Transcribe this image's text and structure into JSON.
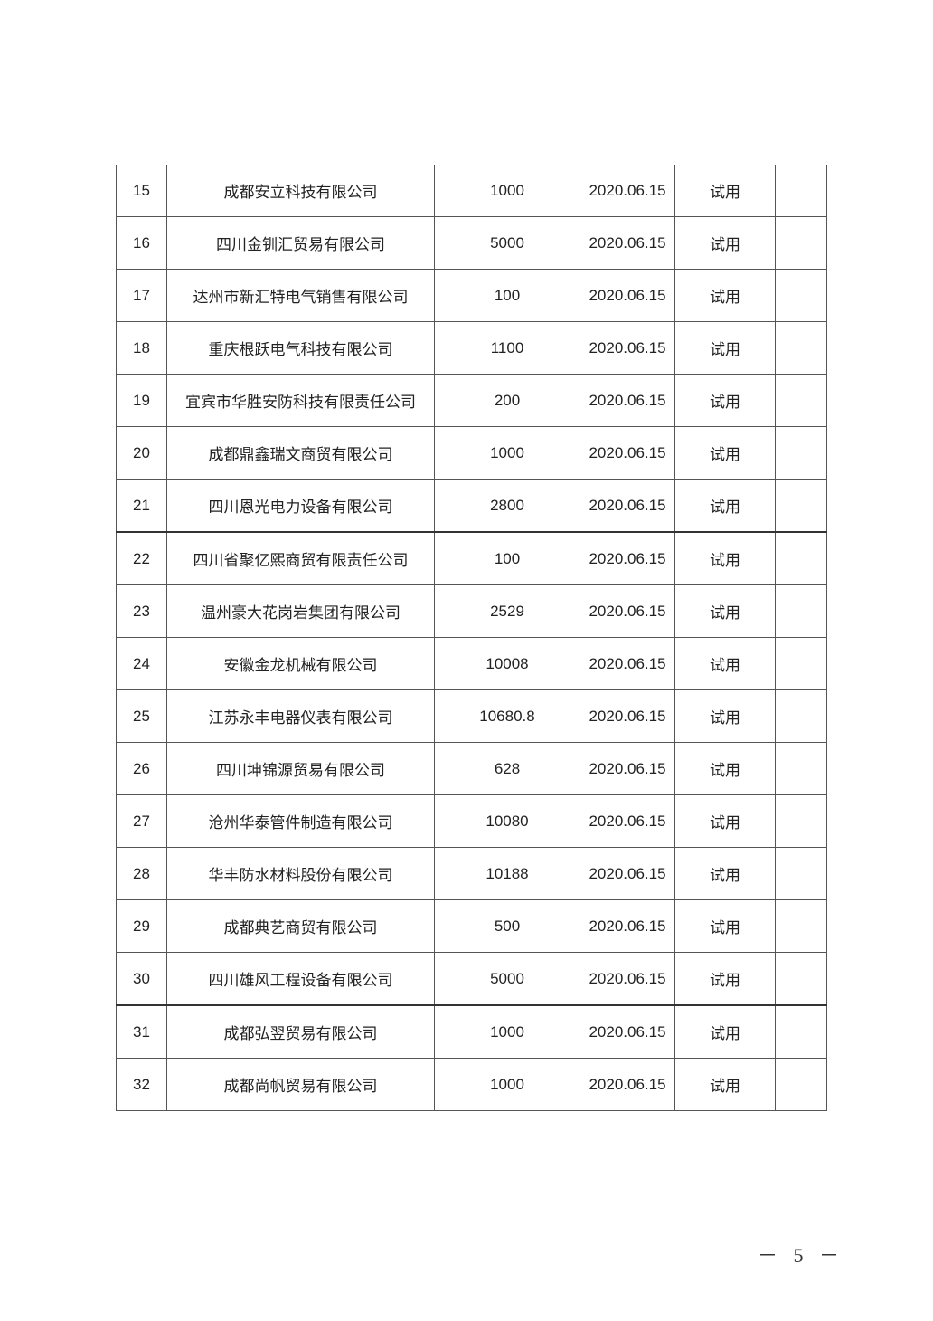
{
  "table": {
    "rows": [
      {
        "no": "15",
        "name": "成都安立科技有限公司",
        "amount": "1000",
        "date": "2020.06.15",
        "status": "试用",
        "note": ""
      },
      {
        "no": "16",
        "name": "四川金钏汇贸易有限公司",
        "amount": "5000",
        "date": "2020.06.15",
        "status": "试用",
        "note": ""
      },
      {
        "no": "17",
        "name": "达州市新汇特电气销售有限公司",
        "amount": "100",
        "date": "2020.06.15",
        "status": "试用",
        "note": ""
      },
      {
        "no": "18",
        "name": "重庆根跃电气科技有限公司",
        "amount": "1100",
        "date": "2020.06.15",
        "status": "试用",
        "note": ""
      },
      {
        "no": "19",
        "name": "宜宾市华胜安防科技有限责任公司",
        "amount": "200",
        "date": "2020.06.15",
        "status": "试用",
        "note": ""
      },
      {
        "no": "20",
        "name": "成都鼎鑫瑞文商贸有限公司",
        "amount": "1000",
        "date": "2020.06.15",
        "status": "试用",
        "note": ""
      },
      {
        "no": "21",
        "name": "四川恩光电力设备有限公司",
        "amount": "2800",
        "date": "2020.06.15",
        "status": "试用",
        "note": ""
      },
      {
        "no": "22",
        "name": "四川省聚亿熙商贸有限责任公司",
        "amount": "100",
        "date": "2020.06.15",
        "status": "试用",
        "note": ""
      },
      {
        "no": "23",
        "name": "温州豪大花岗岩集团有限公司",
        "amount": "2529",
        "date": "2020.06.15",
        "status": "试用",
        "note": ""
      },
      {
        "no": "24",
        "name": "安徽金龙机械有限公司",
        "amount": "10008",
        "date": "2020.06.15",
        "status": "试用",
        "note": ""
      },
      {
        "no": "25",
        "name": "江苏永丰电器仪表有限公司",
        "amount": "10680.8",
        "date": "2020.06.15",
        "status": "试用",
        "note": ""
      },
      {
        "no": "26",
        "name": "四川坤锦源贸易有限公司",
        "amount": "628",
        "date": "2020.06.15",
        "status": "试用",
        "note": ""
      },
      {
        "no": "27",
        "name": "沧州华泰管件制造有限公司",
        "amount": "10080",
        "date": "2020.06.15",
        "status": "试用",
        "note": ""
      },
      {
        "no": "28",
        "name": "华丰防水材料股份有限公司",
        "amount": "10188",
        "date": "2020.06.15",
        "status": "试用",
        "note": ""
      },
      {
        "no": "29",
        "name": "成都典艺商贸有限公司",
        "amount": "500",
        "date": "2020.06.15",
        "status": "试用",
        "note": ""
      },
      {
        "no": "30",
        "name": "四川雄风工程设备有限公司",
        "amount": "5000",
        "date": "2020.06.15",
        "status": "试用",
        "note": ""
      },
      {
        "no": "31",
        "name": "成都弘翌贸易有限公司",
        "amount": "1000",
        "date": "2020.06.15",
        "status": "试用",
        "note": ""
      },
      {
        "no": "32",
        "name": "成都尚帆贸易有限公司",
        "amount": "1000",
        "date": "2020.06.15",
        "status": "试用",
        "note": ""
      }
    ]
  },
  "page_number": "－ 5 －"
}
